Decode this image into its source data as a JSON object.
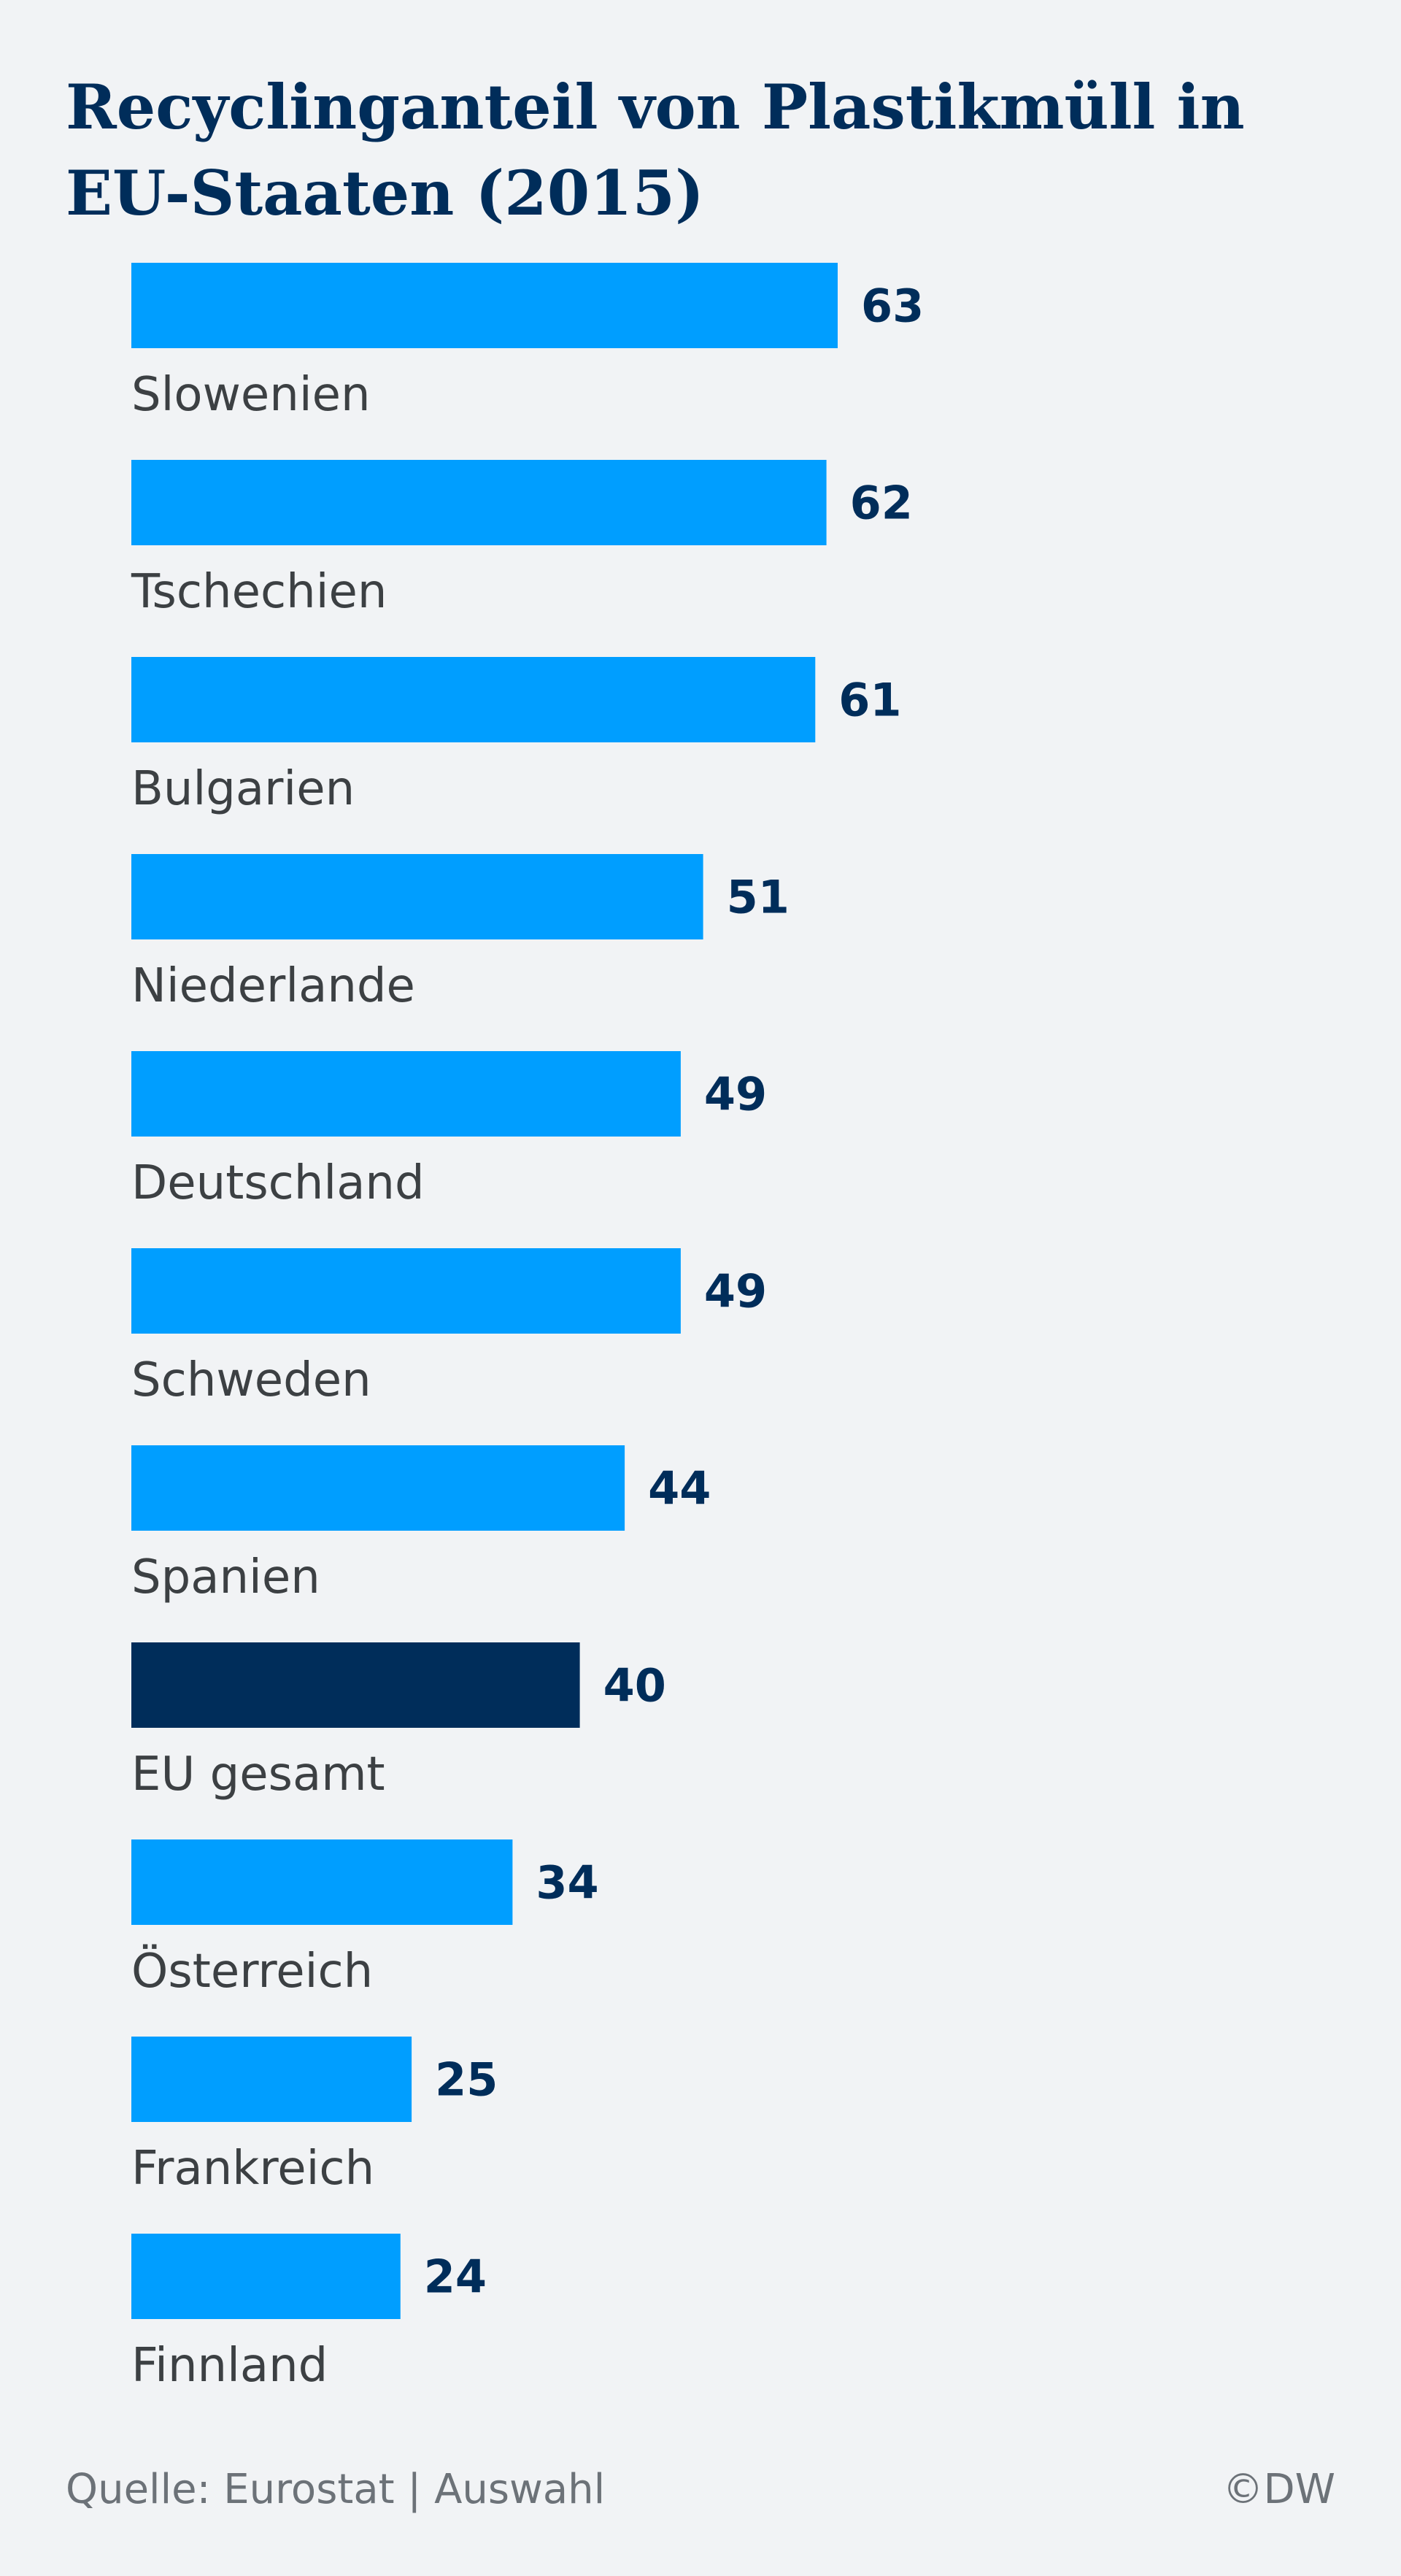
{
  "chart_data": {
    "type": "bar",
    "orientation": "horizontal",
    "title": "Recyclinganteil von Plastikmüll in EU-Staaten (2015)",
    "categories": [
      "Slowenien",
      "Tschechien",
      "Bulgarien",
      "Niederlande",
      "Deutschland",
      "Schweden",
      "Spanien",
      "EU gesamt",
      "Österreich",
      "Frankreich",
      "Finnland"
    ],
    "values": [
      63,
      62,
      61,
      51,
      49,
      49,
      44,
      40,
      34,
      25,
      24
    ],
    "highlight": "EU gesamt",
    "colors": {
      "bar": "#009eff",
      "highlight_bar": "#002d5a",
      "value_text": "#002d5a",
      "label_text": "#3c4043"
    },
    "xlim": [
      0,
      63
    ],
    "grid": false,
    "legend": "none"
  },
  "footer": {
    "source": "Quelle: Eurostat | Auswahl",
    "credit": "©DW"
  }
}
